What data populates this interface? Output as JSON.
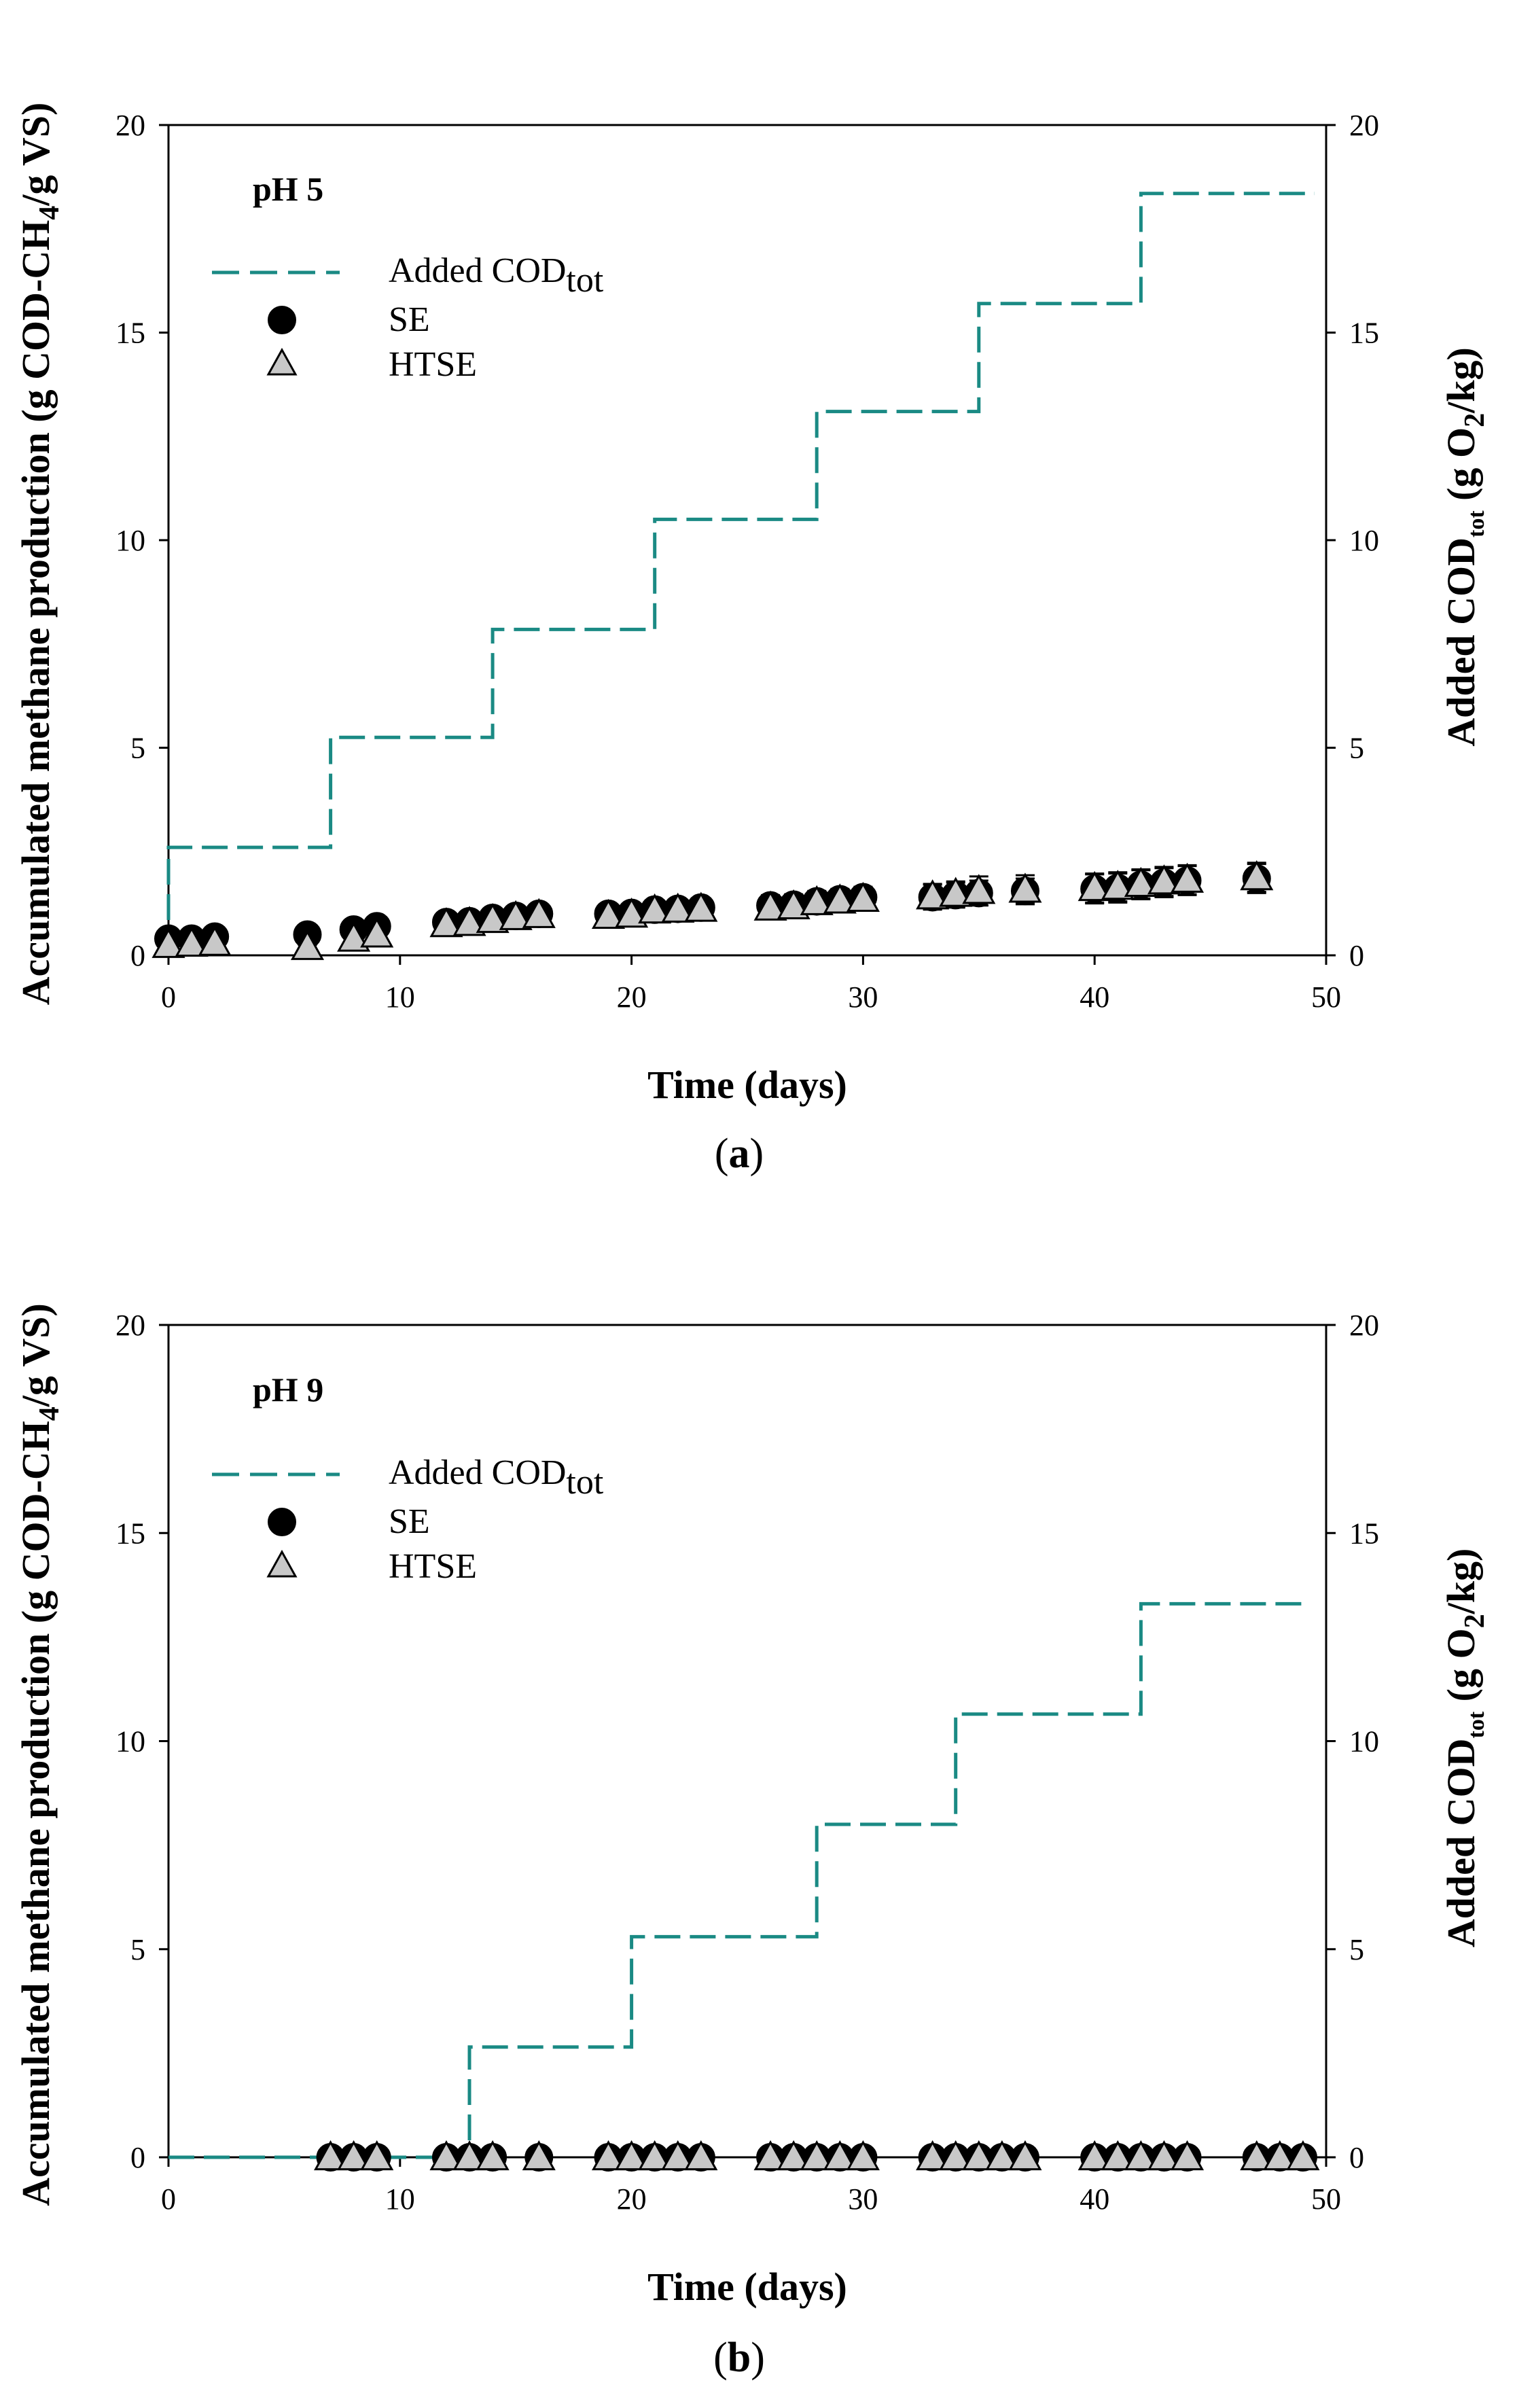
{
  "chart_data": [
    {
      "type": "line",
      "panel": "(a)",
      "title": "pH 5",
      "xlabel": "Time (days)",
      "ylabel_left": "Accumulated methane production (g COD-CH4/g VS)",
      "ylabel_right": "Added CODtot (g O2/kg)",
      "xlim": [
        0,
        50
      ],
      "ylim_left": [
        0,
        20
      ],
      "ylim_right": [
        0,
        20
      ],
      "xticks": [
        "0",
        "10",
        "20",
        "30",
        "40",
        "50"
      ],
      "yticks": [
        "0",
        "5",
        "10",
        "15",
        "20"
      ],
      "legend": {
        "added": "Added COD",
        "added_sub": "tot",
        "se": "SE",
        "htse": "HTSE"
      },
      "added_cod_steps": [
        [
          0,
          0
        ],
        [
          0,
          2.6
        ],
        [
          7,
          2.6
        ],
        [
          7,
          5.25
        ],
        [
          14,
          5.25
        ],
        [
          14,
          7.85
        ],
        [
          21,
          7.85
        ],
        [
          21,
          10.5
        ],
        [
          28,
          10.5
        ],
        [
          28,
          13.1
        ],
        [
          35,
          13.1
        ],
        [
          35,
          15.7
        ],
        [
          42,
          15.7
        ],
        [
          42,
          18.35
        ],
        [
          49.5,
          18.35
        ]
      ],
      "series": [
        {
          "name": "SE",
          "points": [
            [
              0,
              0.4
            ],
            [
              1,
              0.4
            ],
            [
              2,
              0.45
            ],
            [
              6,
              0.5
            ],
            [
              8,
              0.62
            ],
            [
              9,
              0.7
            ],
            [
              12,
              0.8
            ],
            [
              13,
              0.82
            ],
            [
              14,
              0.9
            ],
            [
              15,
              0.95
            ],
            [
              16,
              1.0
            ],
            [
              19,
              1.0
            ],
            [
              20,
              1.02
            ],
            [
              21,
              1.1
            ],
            [
              22,
              1.12
            ],
            [
              23,
              1.15
            ],
            [
              26,
              1.2
            ],
            [
              27,
              1.22
            ],
            [
              28,
              1.3
            ],
            [
              29,
              1.35
            ],
            [
              30,
              1.4
            ],
            [
              33,
              1.4
            ],
            [
              34,
              1.45
            ],
            [
              35,
              1.5
            ],
            [
              37,
              1.55
            ],
            [
              40,
              1.6
            ],
            [
              41,
              1.62
            ],
            [
              42,
              1.7
            ],
            [
              43,
              1.75
            ],
            [
              44,
              1.8
            ],
            [
              47,
              1.85
            ]
          ],
          "errors": [
            0.1,
            0.1,
            0.1,
            0.1,
            0.1,
            0.1,
            0.15,
            0.15,
            0.2,
            0.2,
            0.2,
            0.2,
            0.2,
            0.2,
            0.2,
            0.2,
            0.25,
            0.25,
            0.25,
            0.25,
            0.25,
            0.3,
            0.3,
            0.3,
            0.3,
            0.35,
            0.35,
            0.35,
            0.35,
            0.35,
            0.35
          ]
        },
        {
          "name": "HTSE",
          "points": [
            [
              0,
              0.25
            ],
            [
              1,
              0.28
            ],
            [
              2,
              0.3
            ],
            [
              6,
              0.2
            ],
            [
              8,
              0.4
            ],
            [
              9,
              0.5
            ],
            [
              12,
              0.75
            ],
            [
              13,
              0.78
            ],
            [
              14,
              0.85
            ],
            [
              15,
              0.92
            ],
            [
              16,
              0.97
            ],
            [
              19,
              0.95
            ],
            [
              20,
              0.98
            ],
            [
              21,
              1.08
            ],
            [
              22,
              1.1
            ],
            [
              23,
              1.12
            ],
            [
              26,
              1.15
            ],
            [
              27,
              1.18
            ],
            [
              28,
              1.28
            ],
            [
              29,
              1.32
            ],
            [
              30,
              1.36
            ],
            [
              33,
              1.42
            ],
            [
              34,
              1.48
            ],
            [
              35,
              1.55
            ],
            [
              37,
              1.58
            ],
            [
              40,
              1.62
            ],
            [
              41,
              1.65
            ],
            [
              42,
              1.72
            ],
            [
              43,
              1.78
            ],
            [
              44,
              1.82
            ],
            [
              47,
              1.88
            ]
          ],
          "errors": [
            0.05,
            0.05,
            0.05,
            0.05,
            0.1,
            0.1,
            0.15,
            0.15,
            0.2,
            0.2,
            0.2,
            0.2,
            0.2,
            0.2,
            0.2,
            0.2,
            0.25,
            0.25,
            0.25,
            0.25,
            0.25,
            0.3,
            0.3,
            0.35,
            0.35,
            0.35,
            0.35,
            0.35,
            0.35,
            0.35,
            0.35
          ]
        }
      ]
    },
    {
      "type": "line",
      "panel": "(b)",
      "title": "pH 9",
      "xlabel": "Time (days)",
      "ylabel_left": "Accumulated methane production (g COD-CH4/g VS)",
      "ylabel_right": "Added CODtot (g O2/kg)",
      "xlim": [
        0,
        50
      ],
      "ylim_left": [
        0,
        20
      ],
      "ylim_right": [
        0,
        20
      ],
      "xticks": [
        "0",
        "10",
        "20",
        "30",
        "40",
        "50"
      ],
      "yticks": [
        "0",
        "5",
        "10",
        "15",
        "20"
      ],
      "legend": {
        "added": "Added COD",
        "added_sub": "tot",
        "se": "SE",
        "htse": "HTSE"
      },
      "added_cod_steps": [
        [
          0,
          0
        ],
        [
          13,
          0
        ],
        [
          13,
          2.65
        ],
        [
          20,
          2.65
        ],
        [
          20,
          5.3
        ],
        [
          28,
          5.3
        ],
        [
          28,
          8.0
        ],
        [
          34,
          8.0
        ],
        [
          34,
          10.65
        ],
        [
          42,
          10.65
        ],
        [
          42,
          13.3
        ],
        [
          49.2,
          13.3
        ]
      ],
      "series": [
        {
          "name": "SE",
          "points": [
            [
              7,
              0
            ],
            [
              8,
              0
            ],
            [
              9,
              0
            ],
            [
              12,
              0
            ],
            [
              13,
              0
            ],
            [
              14,
              0
            ],
            [
              16,
              0
            ],
            [
              19,
              0
            ],
            [
              20,
              0
            ],
            [
              21,
              0
            ],
            [
              22,
              0
            ],
            [
              23,
              0
            ],
            [
              26,
              0
            ],
            [
              27,
              0
            ],
            [
              28,
              0
            ],
            [
              29,
              0
            ],
            [
              30,
              0
            ],
            [
              33,
              0
            ],
            [
              34,
              0
            ],
            [
              35,
              0
            ],
            [
              36,
              0
            ],
            [
              37,
              0
            ],
            [
              40,
              0
            ],
            [
              41,
              0
            ],
            [
              42,
              0
            ],
            [
              43,
              0
            ],
            [
              44,
              0
            ],
            [
              47,
              0
            ],
            [
              48,
              0
            ],
            [
              49,
              0
            ]
          ],
          "errors": []
        },
        {
          "name": "HTSE",
          "points": [
            [
              7,
              0
            ],
            [
              8,
              0
            ],
            [
              9,
              0
            ],
            [
              12,
              0
            ],
            [
              13,
              0
            ],
            [
              14,
              0
            ],
            [
              16,
              0
            ],
            [
              19,
              0
            ],
            [
              20,
              0
            ],
            [
              21,
              0
            ],
            [
              22,
              0
            ],
            [
              23,
              0
            ],
            [
              26,
              0
            ],
            [
              27,
              0
            ],
            [
              28,
              0
            ],
            [
              29,
              0
            ],
            [
              30,
              0
            ],
            [
              33,
              0
            ],
            [
              34,
              0
            ],
            [
              35,
              0
            ],
            [
              36,
              0
            ],
            [
              37,
              0
            ],
            [
              40,
              0
            ],
            [
              41,
              0
            ],
            [
              42,
              0
            ],
            [
              43,
              0
            ],
            [
              44,
              0
            ],
            [
              47,
              0
            ],
            [
              48,
              0
            ],
            [
              49,
              0
            ]
          ],
          "errors": []
        }
      ]
    }
  ],
  "colors": {
    "added_line": "#1a8a84",
    "se_fill": "#000000",
    "htse_fill": "#c8c8c8"
  }
}
